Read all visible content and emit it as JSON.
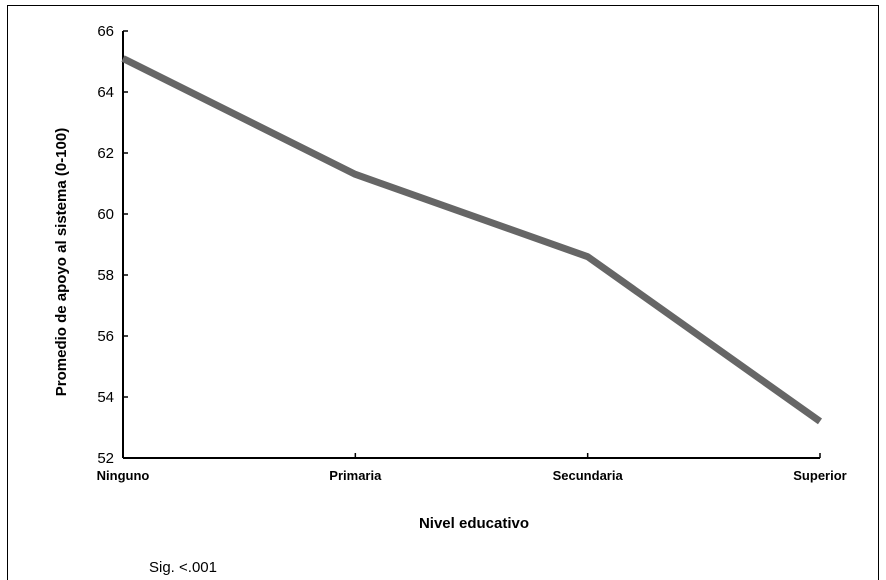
{
  "chart_data": {
    "type": "line",
    "categories": [
      "Ninguno",
      "Primaria",
      "Secundaria",
      "Superior"
    ],
    "series": [
      {
        "values": [
          65.1,
          61.3,
          58.6,
          53.2
        ],
        "color": "#666666"
      }
    ],
    "xlabel": "Nivel educativo",
    "ylabel": "Promedio de apoyo al sistema (0-100)",
    "ylim": [
      52,
      66
    ],
    "yticks": [
      52,
      54,
      56,
      58,
      60,
      62,
      64,
      66
    ],
    "grid": false,
    "legend": "none",
    "note": "Sig. <.001"
  }
}
